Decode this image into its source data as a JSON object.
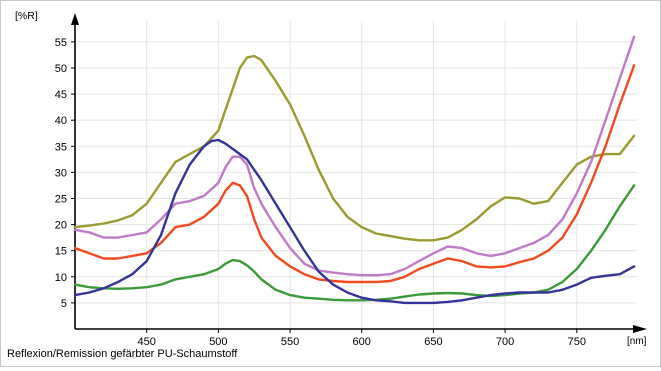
{
  "chart_data": {
    "type": "line",
    "ylabel": "[%R]",
    "xlabel": "[nm]",
    "caption": "Reflexion/Remission gefärbter PU-Schaumstoff",
    "xlim": [
      400,
      792
    ],
    "ylim": [
      0,
      59
    ],
    "xticks": [
      450,
      500,
      550,
      600,
      650,
      700,
      750
    ],
    "yticks": [
      5,
      10,
      15,
      20,
      25,
      30,
      35,
      40,
      45,
      50,
      55
    ],
    "grid": true,
    "series": [
      {
        "color": "#9a9a30",
        "x": [
          400,
          410,
          420,
          430,
          440,
          450,
          460,
          470,
          480,
          490,
          500,
          505,
          510,
          515,
          520,
          525,
          530,
          535,
          540,
          550,
          560,
          570,
          580,
          590,
          600,
          610,
          620,
          630,
          640,
          650,
          660,
          670,
          680,
          690,
          700,
          710,
          720,
          730,
          740,
          750,
          760,
          770,
          780,
          790
        ],
        "y": [
          19.5,
          19.8,
          20.2,
          20.8,
          21.8,
          24,
          28,
          32,
          33.5,
          35,
          38,
          42,
          46,
          50,
          52,
          52.3,
          51.5,
          49.5,
          47.5,
          43,
          37,
          30.5,
          25,
          21.5,
          19.5,
          18.3,
          17.8,
          17.3,
          17,
          17,
          17.5,
          19,
          21,
          23.5,
          25.2,
          25,
          24,
          24.5,
          28,
          31.5,
          33,
          33.5,
          33.5,
          37
        ]
      },
      {
        "color": "#c07ac8",
        "x": [
          400,
          410,
          420,
          430,
          440,
          450,
          460,
          470,
          480,
          490,
          500,
          505,
          510,
          515,
          520,
          525,
          530,
          540,
          550,
          560,
          570,
          580,
          590,
          600,
          610,
          620,
          630,
          640,
          650,
          660,
          670,
          680,
          690,
          700,
          710,
          720,
          730,
          740,
          750,
          760,
          770,
          780,
          790
        ],
        "y": [
          19,
          18.5,
          17.5,
          17.5,
          18,
          18.5,
          21,
          24,
          24.5,
          25.5,
          28,
          31,
          33,
          33,
          31.5,
          27,
          24,
          19.5,
          15.5,
          12.5,
          11.2,
          10.8,
          10.5,
          10.3,
          10.3,
          10.5,
          11.5,
          13,
          14.5,
          15.8,
          15.5,
          14.5,
          14,
          14.5,
          15.5,
          16.5,
          18,
          21,
          26,
          32,
          40,
          48,
          56
        ]
      },
      {
        "color": "#f04a20",
        "x": [
          400,
          410,
          420,
          430,
          440,
          450,
          460,
          470,
          480,
          490,
          500,
          505,
          510,
          515,
          520,
          525,
          530,
          540,
          550,
          560,
          570,
          580,
          590,
          600,
          610,
          620,
          630,
          640,
          650,
          660,
          670,
          680,
          690,
          700,
          710,
          720,
          730,
          740,
          750,
          760,
          770,
          780,
          790
        ],
        "y": [
          15.5,
          14.5,
          13.5,
          13.5,
          14,
          14.5,
          16.5,
          19.5,
          20,
          21.5,
          24,
          26.5,
          28,
          27.5,
          25.5,
          21,
          17.5,
          14,
          12,
          10.5,
          9.5,
          9.2,
          9,
          9,
          9,
          9.2,
          10,
          11.5,
          12.5,
          13.5,
          13,
          12,
          11.8,
          12,
          12.8,
          13.5,
          15,
          17.5,
          22,
          28,
          35,
          43,
          50.5
        ]
      },
      {
        "color": "#3a9a3a",
        "x": [
          400,
          410,
          420,
          430,
          440,
          450,
          460,
          470,
          480,
          490,
          500,
          505,
          510,
          515,
          520,
          525,
          530,
          540,
          550,
          560,
          570,
          580,
          590,
          600,
          610,
          620,
          630,
          640,
          650,
          660,
          670,
          680,
          690,
          700,
          710,
          720,
          730,
          740,
          750,
          760,
          770,
          780,
          790
        ],
        "y": [
          8.5,
          8,
          7.8,
          7.7,
          7.8,
          8,
          8.5,
          9.5,
          10,
          10.5,
          11.5,
          12.5,
          13.2,
          13,
          12.2,
          11,
          9.5,
          7.5,
          6.5,
          6,
          5.8,
          5.6,
          5.5,
          5.5,
          5.6,
          5.8,
          6.2,
          6.6,
          6.8,
          6.9,
          6.8,
          6.5,
          6.3,
          6.5,
          6.8,
          7,
          7.5,
          9,
          11.5,
          15,
          19,
          23.5,
          27.5
        ]
      },
      {
        "color": "#343498",
        "x": [
          400,
          410,
          420,
          430,
          440,
          450,
          460,
          470,
          480,
          490,
          495,
          500,
          505,
          510,
          515,
          520,
          525,
          530,
          540,
          550,
          560,
          570,
          580,
          590,
          600,
          610,
          620,
          630,
          640,
          650,
          660,
          670,
          680,
          690,
          700,
          710,
          720,
          730,
          740,
          750,
          760,
          770,
          780,
          790
        ],
        "y": [
          6.5,
          7,
          7.8,
          9,
          10.5,
          13,
          18,
          26,
          31.5,
          35,
          36,
          36.2,
          35.5,
          34.5,
          33.5,
          32.5,
          30.5,
          28.5,
          24,
          19.5,
          15,
          11,
          8.5,
          7,
          6,
          5.5,
          5.3,
          5,
          5,
          5,
          5.2,
          5.5,
          6,
          6.5,
          6.8,
          7,
          7,
          7,
          7.5,
          8.5,
          9.8,
          10.2,
          10.5,
          12
        ]
      }
    ]
  }
}
